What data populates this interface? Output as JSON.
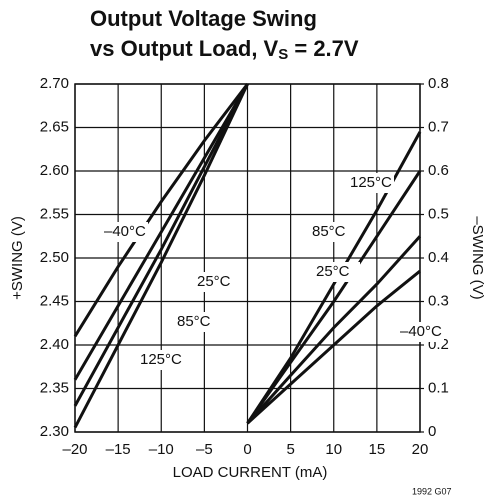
{
  "chart_data": {
    "type": "line",
    "title": "Output Voltage Swing",
    "subtitle": {
      "text": "vs Output Load, V",
      "sub": "S",
      "rest": " = 2.7V"
    },
    "x_label": "LOAD CURRENT (mA)",
    "y_label": "+SWING (V)",
    "y2_label": "–SWING (V)",
    "note": "1992 G07",
    "xlim": [
      -20,
      20
    ],
    "xticks": [
      {
        "value": -20,
        "label": "–20"
      },
      {
        "value": -15,
        "label": "–15"
      },
      {
        "value": -10,
        "label": "–10"
      },
      {
        "value": -5,
        "label": "–5"
      },
      0,
      5,
      10,
      15,
      20
    ],
    "ylim": [
      2.3,
      2.7
    ],
    "yticks": [
      {
        "value": 2.3,
        "label": "2.30"
      },
      {
        "value": 2.35,
        "label": "2.35"
      },
      {
        "value": 2.4,
        "label": "2.40"
      },
      {
        "value": 2.45,
        "label": "2.45"
      },
      {
        "value": 2.5,
        "label": "2.50"
      },
      {
        "value": 2.55,
        "label": "2.55"
      },
      {
        "value": 2.6,
        "label": "2.60"
      },
      {
        "value": 2.65,
        "label": "2.65"
      },
      {
        "value": 2.7,
        "label": "2.70"
      }
    ],
    "y2lim": [
      0,
      0.8
    ],
    "y2ticks": [
      0,
      0.1,
      0.2,
      0.3,
      0.4,
      0.5,
      0.6,
      0.7,
      0.8
    ],
    "grid": true,
    "color": "#111111",
    "series": [
      {
        "name": "–40°C",
        "x": [
          -20,
          -15,
          -10,
          -5,
          0
        ],
        "values": [
          2.41,
          2.49,
          2.565,
          2.635,
          2.7
        ]
      },
      {
        "name": "25°C",
        "x": [
          -20,
          -15,
          -10,
          -5,
          0
        ],
        "values": [
          2.36,
          2.445,
          2.53,
          2.615,
          2.7
        ]
      },
      {
        "name": "85°C",
        "x": [
          -20,
          -15,
          -10,
          -5,
          0
        ],
        "values": [
          2.33,
          2.42,
          2.51,
          2.605,
          2.7
        ]
      },
      {
        "name": "125°C",
        "x": [
          -20,
          -15,
          -10,
          -5,
          0
        ],
        "values": [
          2.305,
          2.4,
          2.495,
          2.595,
          2.7
        ]
      },
      {
        "name": "125°C",
        "axis": "y2",
        "x": [
          0,
          5,
          10,
          15,
          20
        ],
        "values": [
          0.02,
          0.17,
          0.34,
          0.51,
          0.69
        ]
      },
      {
        "name": "85°C",
        "axis": "y2",
        "x": [
          0,
          5,
          10,
          15,
          20
        ],
        "values": [
          0.02,
          0.16,
          0.3,
          0.45,
          0.6
        ]
      },
      {
        "name": "25°C",
        "axis": "y2",
        "x": [
          0,
          5,
          10,
          15,
          20
        ],
        "values": [
          0.02,
          0.13,
          0.24,
          0.34,
          0.45
        ]
      },
      {
        "name": "–40°C",
        "axis": "y2",
        "x": [
          0,
          5,
          10,
          15,
          20
        ],
        "values": [
          0.02,
          0.11,
          0.2,
          0.29,
          0.37
        ]
      }
    ]
  }
}
